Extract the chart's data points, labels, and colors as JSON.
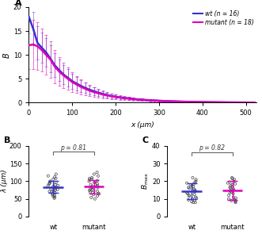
{
  "panel_A": {
    "x_range": [
      0,
      525
    ],
    "y_range": [
      0,
      20
    ],
    "xlabel": "x (μm)",
    "ylabel": "B",
    "wt_color": "#3333cc",
    "mutant_color": "#dd00bb",
    "legend_wt": "wt (n = 16)",
    "legend_mutant": "mutant (n = 18)",
    "wt_x": [
      0,
      10,
      20,
      30,
      40,
      50,
      60,
      70,
      80,
      90,
      100,
      110,
      120,
      130,
      140,
      150,
      160,
      170,
      180,
      190,
      200,
      210,
      220,
      230,
      240,
      250,
      260,
      270,
      280,
      290,
      300,
      310,
      320,
      330,
      340,
      350,
      360,
      370,
      380,
      390,
      400,
      420,
      440,
      460,
      480,
      500,
      520
    ],
    "wt_mean": [
      18.0,
      15.5,
      12.5,
      11.5,
      10.5,
      9.2,
      7.8,
      6.8,
      5.9,
      5.2,
      4.5,
      4.0,
      3.5,
      3.1,
      2.7,
      2.4,
      2.1,
      1.85,
      1.6,
      1.4,
      1.25,
      1.1,
      1.0,
      0.88,
      0.78,
      0.7,
      0.62,
      0.56,
      0.5,
      0.45,
      0.4,
      0.36,
      0.32,
      0.28,
      0.25,
      0.22,
      0.2,
      0.18,
      0.16,
      0.14,
      0.12,
      0.09,
      0.07,
      0.05,
      0.04,
      0.03,
      0.02
    ],
    "wt_err": [
      3.5,
      3.5,
      3.5,
      3.2,
      3.0,
      2.8,
      2.5,
      2.2,
      2.0,
      1.8,
      1.6,
      1.4,
      1.2,
      1.05,
      0.9,
      0.78,
      0.68,
      0.6,
      0.52,
      0.45,
      0.4,
      0.35,
      0.3,
      0.27,
      0.24,
      0.21,
      0.19,
      0.17,
      0.15,
      0.13,
      0.12,
      0.1,
      0.09,
      0.08,
      0.07,
      0.06,
      0.06,
      0.05,
      0.04,
      0.04,
      0.03,
      0.03,
      0.02,
      0.02,
      0.015,
      0.01,
      0.01
    ],
    "mut_x": [
      0,
      10,
      20,
      30,
      40,
      50,
      60,
      70,
      80,
      90,
      100,
      110,
      120,
      130,
      140,
      150,
      160,
      170,
      180,
      190,
      200,
      210,
      220,
      230,
      240,
      250,
      260,
      270,
      280,
      290,
      300,
      310,
      320,
      330,
      340,
      350,
      360,
      370,
      380,
      390,
      400,
      420,
      440,
      460,
      480,
      500,
      520
    ],
    "mut_mean": [
      12.0,
      12.2,
      11.8,
      11.0,
      10.0,
      9.0,
      7.5,
      6.5,
      5.7,
      5.0,
      4.3,
      3.8,
      3.3,
      2.9,
      2.5,
      2.2,
      1.95,
      1.7,
      1.5,
      1.32,
      1.18,
      1.05,
      0.93,
      0.83,
      0.74,
      0.66,
      0.59,
      0.53,
      0.48,
      0.43,
      0.38,
      0.34,
      0.3,
      0.27,
      0.24,
      0.21,
      0.19,
      0.17,
      0.15,
      0.13,
      0.12,
      0.09,
      0.07,
      0.05,
      0.04,
      0.03,
      0.02
    ],
    "mut_err": [
      5.0,
      5.2,
      5.0,
      4.5,
      4.2,
      3.8,
      3.5,
      3.0,
      2.6,
      2.3,
      2.0,
      1.75,
      1.5,
      1.32,
      1.15,
      1.0,
      0.88,
      0.77,
      0.67,
      0.58,
      0.51,
      0.44,
      0.39,
      0.34,
      0.3,
      0.26,
      0.23,
      0.2,
      0.18,
      0.16,
      0.14,
      0.12,
      0.11,
      0.09,
      0.08,
      0.07,
      0.06,
      0.06,
      0.05,
      0.04,
      0.04,
      0.03,
      0.02,
      0.02,
      0.015,
      0.01,
      0.01
    ]
  },
  "panel_B": {
    "ylabel": "λ (μm)",
    "y_range": [
      0,
      200
    ],
    "yticks": [
      0,
      50,
      100,
      150,
      200
    ],
    "wt_mean": 84,
    "wt_sd": 16,
    "mutant_mean": 85,
    "mutant_sd": 19,
    "wt_color": "#3333cc",
    "mutant_color": "#dd00bb",
    "p_value": "p = 0.81",
    "wt_points": [
      120,
      115,
      112,
      108,
      106,
      100,
      98,
      96,
      94,
      92,
      90,
      88,
      87,
      85,
      83,
      82,
      80,
      78,
      77,
      75,
      73,
      71,
      69,
      67,
      65,
      62,
      60,
      57,
      55,
      52
    ],
    "mutant_points": [
      125,
      120,
      115,
      110,
      108,
      106,
      104,
      102,
      100,
      98,
      96,
      93,
      90,
      88,
      86,
      85,
      83,
      82,
      80,
      78,
      76,
      74,
      72,
      70,
      68,
      66,
      64,
      62,
      58,
      54,
      50
    ]
  },
  "panel_C": {
    "y_range": [
      0,
      40
    ],
    "yticks": [
      0,
      10,
      20,
      30,
      40
    ],
    "wt_mean": 14.5,
    "wt_sd": 4.5,
    "mutant_mean": 14.8,
    "mutant_sd": 5.2,
    "wt_color": "#3333cc",
    "mutant_color": "#dd00bb",
    "p_value": "p = 0.82",
    "wt_points": [
      22,
      21,
      20,
      19.5,
      19,
      18.5,
      18,
      17.5,
      17,
      16.5,
      16,
      15.5,
      15,
      14.5,
      14,
      13.5,
      13,
      12.5,
      12,
      11.5,
      11,
      10.5,
      10,
      9.5,
      9,
      8.5,
      8,
      8
    ],
    "mutant_points": [
      22,
      21.5,
      21,
      20,
      19.5,
      19,
      18.5,
      18,
      17.5,
      17,
      16.5,
      16,
      15.5,
      15,
      14.5,
      14,
      13.5,
      13,
      12,
      11,
      10.5,
      10,
      9.5,
      9,
      9,
      8.5,
      8
    ]
  },
  "bg_color": "#ffffff"
}
